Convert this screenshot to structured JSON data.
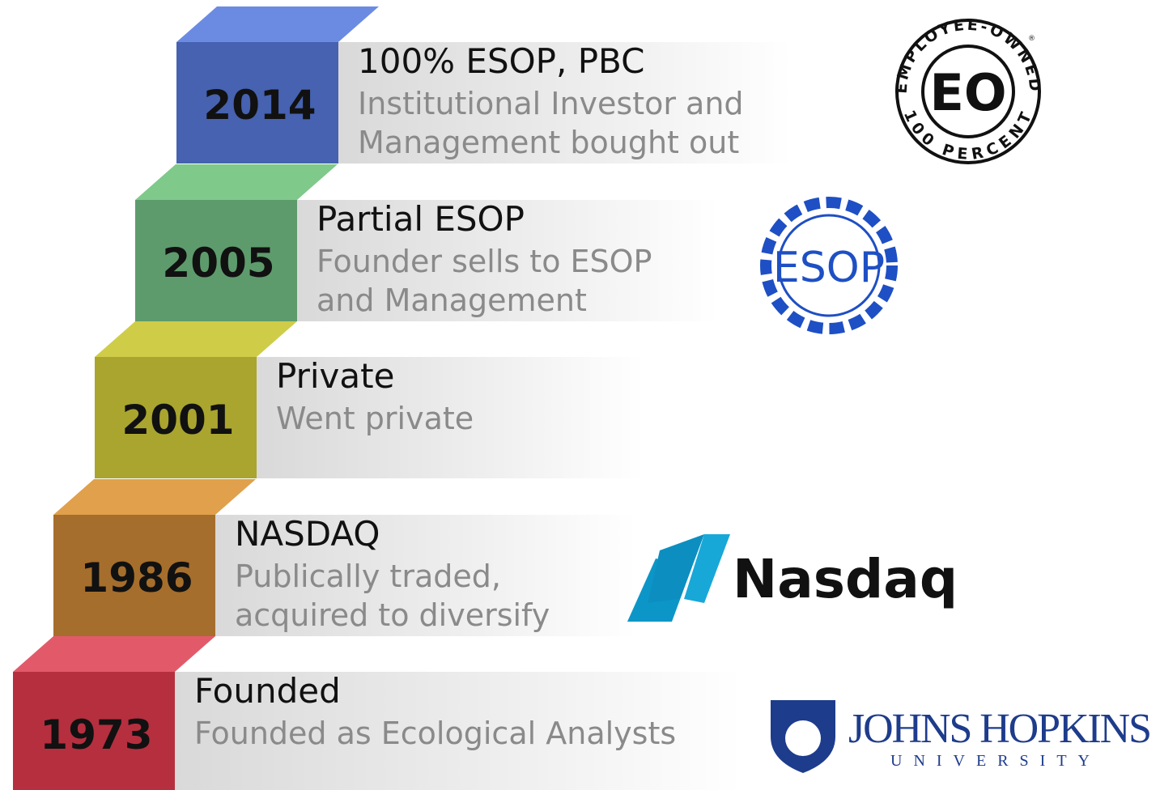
{
  "steps": [
    {
      "year": "2014",
      "title": "100% ESOP, PBC",
      "description": [
        "Institutional Investor and",
        "Management bought out"
      ]
    },
    {
      "year": "2005",
      "title": "Partial ESOP",
      "description": [
        "Founder sells to ESOP",
        "and Management"
      ]
    },
    {
      "year": "2001",
      "title": "Private",
      "description": [
        "Went private"
      ]
    },
    {
      "year": "1986",
      "title": "NASDAQ",
      "description": [
        "Publically traded,",
        "acquired to diversify"
      ]
    },
    {
      "year": "1973",
      "title": "Founded",
      "description": [
        "Founded as Ecological Analysts"
      ]
    }
  ],
  "logos": {
    "employee_owned": {
      "ring_top": "EMPLOYEE-OWNED",
      "ring_bottom": "100 PERCENT",
      "center": "EO",
      "mark": "®"
    },
    "esop": {
      "center": "ESOP"
    },
    "nasdaq": {
      "name": "Nasdaq"
    },
    "jhu": {
      "name": "JOHNS HOPKINS",
      "sub": "UNIVERSITY"
    }
  }
}
